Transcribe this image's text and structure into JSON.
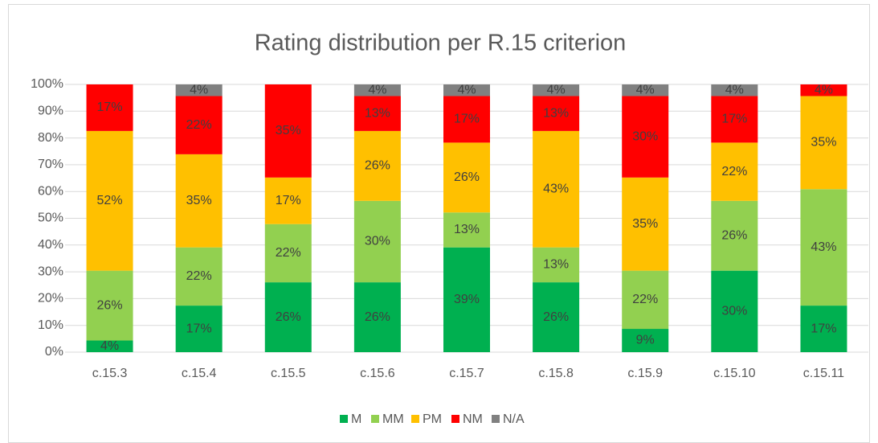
{
  "chart_data": {
    "type": "stacked_bar",
    "title": "Rating distribution per R.15 criterion",
    "categories": [
      "c.15.3",
      "c.15.4",
      "c.15.5",
      "c.15.6",
      "c.15.7",
      "c.15.8",
      "c.15.9",
      "c.15.10",
      "c.15.11"
    ],
    "series": [
      {
        "name": "M",
        "color": "#00b050",
        "values": [
          4.35,
          17.39,
          26.09,
          26.09,
          39.13,
          26.09,
          8.7,
          30.43,
          17.39
        ],
        "value_labels": [
          "4%",
          "17%",
          "26%",
          "26%",
          "39%",
          "26%",
          "9%",
          "30%",
          "17%"
        ]
      },
      {
        "name": "MM",
        "color": "#92d050",
        "values": [
          26.09,
          21.74,
          21.74,
          30.43,
          13.04,
          13.04,
          21.74,
          26.09,
          43.48
        ],
        "value_labels": [
          "26%",
          "22%",
          "22%",
          "30%",
          "13%",
          "13%",
          "22%",
          "26%",
          "43%"
        ]
      },
      {
        "name": "PM",
        "color": "#ffc000",
        "values": [
          52.17,
          34.78,
          17.39,
          26.09,
          26.09,
          43.48,
          34.78,
          21.74,
          34.78
        ],
        "value_labels": [
          "52%",
          "35%",
          "17%",
          "26%",
          "26%",
          "43%",
          "35%",
          "22%",
          "35%"
        ]
      },
      {
        "name": "NM",
        "color": "#ff0000",
        "values": [
          17.39,
          21.74,
          34.78,
          13.04,
          17.39,
          13.04,
          30.43,
          17.39,
          4.35
        ],
        "value_labels": [
          "17%",
          "22%",
          "35%",
          "13%",
          "17%",
          "13%",
          "30%",
          "17%",
          "4%"
        ]
      },
      {
        "name": "N/A",
        "color": "#808080",
        "values": [
          0,
          4.35,
          0,
          4.35,
          4.35,
          4.35,
          4.35,
          4.35,
          0
        ],
        "value_labels": [
          null,
          "4%",
          null,
          "4%",
          "4%",
          "4%",
          "4%",
          "4%",
          null
        ]
      }
    ],
    "ylim": [
      0,
      100
    ],
    "yticks": [
      {
        "value": 0,
        "label": "0%"
      },
      {
        "value": 10,
        "label": "10%"
      },
      {
        "value": 20,
        "label": "20%"
      },
      {
        "value": 30,
        "label": "30%"
      },
      {
        "value": 40,
        "label": "40%"
      },
      {
        "value": 50,
        "label": "50%"
      },
      {
        "value": 60,
        "label": "60%"
      },
      {
        "value": 70,
        "label": "70%"
      },
      {
        "value": 80,
        "label": "80%"
      },
      {
        "value": 90,
        "label": "90%"
      },
      {
        "value": 100,
        "label": "100%"
      }
    ],
    "grid": true,
    "legend": "bottom"
  }
}
